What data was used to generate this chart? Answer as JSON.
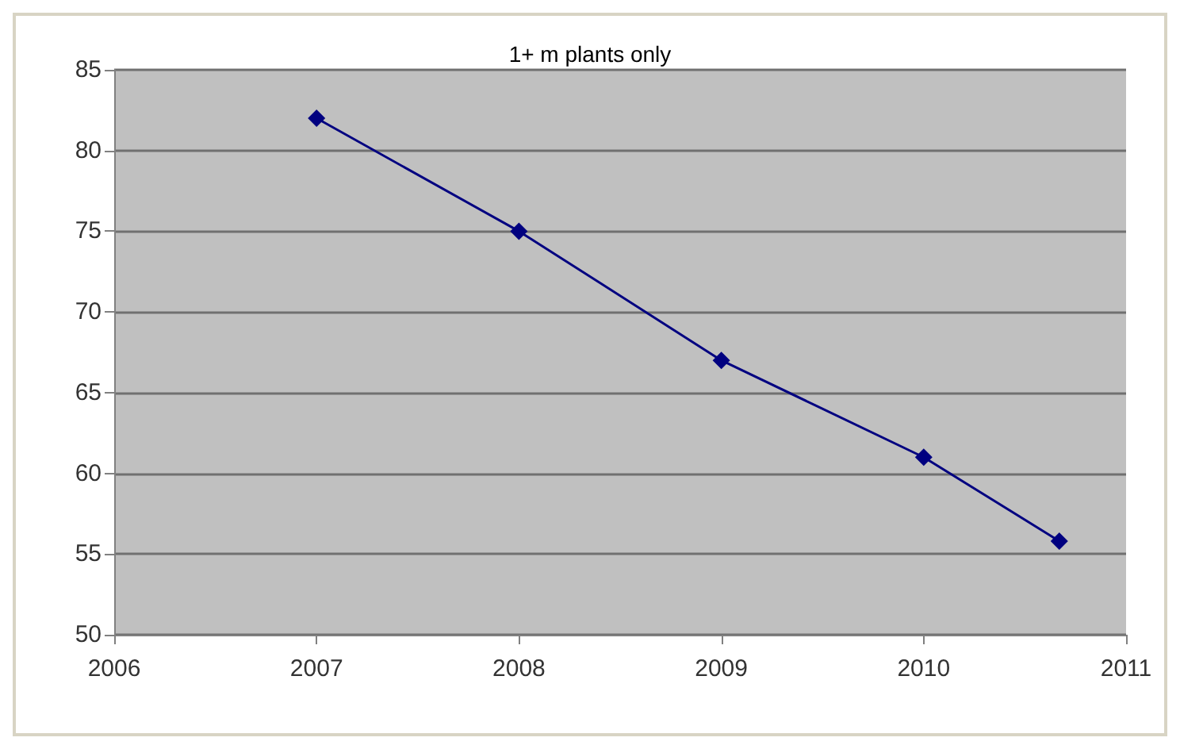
{
  "chart_data": {
    "type": "line",
    "title": "1+ m plants only",
    "x": [
      2007,
      2008,
      2009,
      2010,
      2010.67
    ],
    "series": [
      {
        "color": "#000080",
        "values": [
          82,
          75,
          67,
          61,
          55.8
        ]
      }
    ],
    "xlim": [
      2006,
      2011
    ],
    "xticks": [
      2006,
      2007,
      2008,
      2009,
      2010,
      2011
    ],
    "ylim": [
      50,
      85
    ],
    "yticks": [
      50,
      55,
      60,
      65,
      70,
      75,
      80,
      85
    ],
    "grid": "y",
    "marker": "diamond",
    "line_style": "solid"
  }
}
